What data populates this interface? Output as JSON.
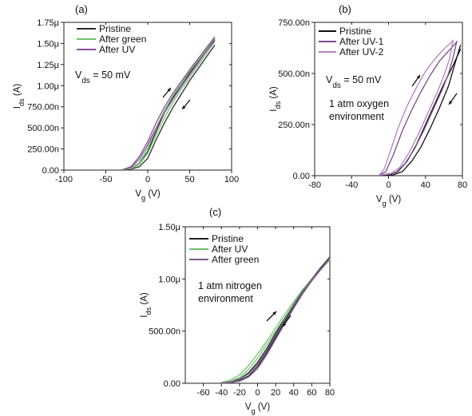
{
  "chart_data": [
    {
      "panel_label": "(a)",
      "type": "line",
      "xlabel": "V",
      "xlabel_sub": "g",
      "xlabel_unit": " (V)",
      "ylabel": "I",
      "ylabel_sub": "ds",
      "ylabel_unit": " (A)",
      "xlim": [
        -100,
        100
      ],
      "ylim": [
        0,
        1.75e-06
      ],
      "xticks": [
        -100,
        -50,
        0,
        50,
        100
      ],
      "xtick_labels": [
        "-100",
        "-50",
        "0",
        "50",
        "100"
      ],
      "yticks": [
        0,
        2.5e-07,
        5e-07,
        7.5e-07,
        1e-06,
        1.25e-06,
        1.5e-06,
        1.75e-06
      ],
      "ytick_labels": [
        "0.00",
        "250.00n",
        "500.00n",
        "750.00n",
        "1.00μ",
        "1.25μ",
        "1.50μ",
        "1.75μ"
      ],
      "annotations": [
        {
          "text": "V",
          "sub": "ds",
          "rest": " = 50 mV"
        }
      ],
      "legend": [
        "Pristine",
        "After green",
        "After UV"
      ],
      "series": [
        {
          "name": "Pristine",
          "color": "#2b2b2b",
          "forward": [
            [
              -30,
              5e-09
            ],
            [
              -20,
              1e-08
            ],
            [
              -10,
              4e-08
            ],
            [
              0,
              1.4e-07
            ],
            [
              10,
              3.6e-07
            ],
            [
              20,
              5.6e-07
            ],
            [
              30,
              7.4e-07
            ],
            [
              40,
              9e-07
            ],
            [
              50,
              1.06e-06
            ],
            [
              60,
              1.2e-06
            ],
            [
              70,
              1.34e-06
            ],
            [
              80,
              1.48e-06
            ]
          ],
          "reverse": [
            [
              80,
              1.54e-06
            ],
            [
              70,
              1.41e-06
            ],
            [
              60,
              1.28e-06
            ],
            [
              50,
              1.15e-06
            ],
            [
              40,
              1e-06
            ],
            [
              30,
              8.6e-07
            ],
            [
              20,
              6.8e-07
            ],
            [
              10,
              4.6e-07
            ],
            [
              0,
              2.2e-07
            ],
            [
              -10,
              7e-08
            ],
            [
              -20,
              1.5e-08
            ],
            [
              -30,
              5e-09
            ]
          ]
        },
        {
          "name": "After green",
          "color": "#6ec26e",
          "forward": [
            [
              -30,
              5e-09
            ],
            [
              -20,
              1.5e-08
            ],
            [
              -10,
              7e-08
            ],
            [
              0,
              2e-07
            ],
            [
              10,
              4.2e-07
            ],
            [
              20,
              6.2e-07
            ],
            [
              30,
              8e-07
            ],
            [
              40,
              9.6e-07
            ],
            [
              50,
              1.1e-06
            ],
            [
              60,
              1.24e-06
            ],
            [
              70,
              1.38e-06
            ],
            [
              80,
              1.52e-06
            ]
          ],
          "reverse": [
            [
              80,
              1.56e-06
            ],
            [
              70,
              1.43e-06
            ],
            [
              60,
              1.3e-06
            ],
            [
              50,
              1.17e-06
            ],
            [
              40,
              1.03e-06
            ],
            [
              30,
              8.8e-07
            ],
            [
              20,
              7.1e-07
            ],
            [
              10,
              5e-07
            ],
            [
              0,
              2.6e-07
            ],
            [
              -10,
              9e-08
            ],
            [
              -20,
              2e-08
            ],
            [
              -30,
              5e-09
            ]
          ]
        },
        {
          "name": "After UV",
          "color": "#8c4f9a",
          "forward": [
            [
              -30,
              5e-09
            ],
            [
              -20,
              3e-08
            ],
            [
              -10,
              1.3e-07
            ],
            [
              0,
              3e-07
            ],
            [
              10,
              5e-07
            ],
            [
              20,
              6.8e-07
            ],
            [
              30,
              8.4e-07
            ],
            [
              40,
              9.9e-07
            ],
            [
              50,
              1.13e-06
            ],
            [
              60,
              1.27e-06
            ],
            [
              70,
              1.41e-06
            ],
            [
              80,
              1.55e-06
            ]
          ],
          "reverse": [
            [
              80,
              1.58e-06
            ],
            [
              70,
              1.45e-06
            ],
            [
              60,
              1.32e-06
            ],
            [
              50,
              1.19e-06
            ],
            [
              40,
              1.05e-06
            ],
            [
              30,
              9.1e-07
            ],
            [
              20,
              7.5e-07
            ],
            [
              10,
              5.6e-07
            ],
            [
              0,
              3.4e-07
            ],
            [
              -10,
              1.6e-07
            ],
            [
              -20,
              4e-08
            ],
            [
              -30,
              5e-09
            ]
          ]
        }
      ]
    },
    {
      "panel_label": "(b)",
      "type": "line",
      "xlabel": "V",
      "xlabel_sub": "g",
      "xlabel_unit": " (V)",
      "ylabel": "I",
      "ylabel_sub": "ds",
      "ylabel_unit": " (A)",
      "xlim": [
        -80,
        80
      ],
      "ylim": [
        0,
        7.5e-07
      ],
      "xticks": [
        -80,
        -40,
        0,
        40,
        80
      ],
      "xtick_labels": [
        "-80",
        "-40",
        "0",
        "40",
        "80"
      ],
      "yticks": [
        0,
        2.5e-07,
        5e-07,
        7.5e-07
      ],
      "ytick_labels": [
        "0.00",
        "250.00n",
        "500.00n",
        "750.00n"
      ],
      "annotations": [
        {
          "text": "V",
          "sub": "ds",
          "rest": " = 50 mV"
        },
        {
          "text": "1 atm oxygen"
        },
        {
          "text": "environment"
        }
      ],
      "legend": [
        "Pristine",
        "After UV-1",
        "After UV-2"
      ],
      "series": [
        {
          "name": "Pristine",
          "color": "#111111",
          "forward": [
            [
              -10,
              1e-09
            ],
            [
              0,
              3e-09
            ],
            [
              10,
              2e-08
            ],
            [
              20,
              7e-08
            ],
            [
              30,
              1.5e-07
            ],
            [
              40,
              2.5e-07
            ],
            [
              50,
              3.5e-07
            ],
            [
              60,
              4.5e-07
            ],
            [
              70,
              5.4e-07
            ],
            [
              78,
              6.2e-07
            ]
          ],
          "reverse": [
            [
              78,
              6.4e-07
            ],
            [
              72,
              5.5e-07
            ],
            [
              65,
              4.4e-07
            ],
            [
              55,
              3.3e-07
            ],
            [
              45,
              2.3e-07
            ],
            [
              35,
              1.4e-07
            ],
            [
              25,
              7e-08
            ],
            [
              15,
              2e-08
            ],
            [
              5,
              4e-09
            ],
            [
              -10,
              1e-09
            ]
          ]
        },
        {
          "name": "After UV-1",
          "color": "#7a4a8a",
          "forward": [
            [
              -10,
              2e-09
            ],
            [
              -3,
              2e-08
            ],
            [
              5,
              1e-07
            ],
            [
              15,
              2.2e-07
            ],
            [
              25,
              3.2e-07
            ],
            [
              35,
              4.1e-07
            ],
            [
              45,
              4.9e-07
            ],
            [
              55,
              5.6e-07
            ],
            [
              65,
              6.1e-07
            ],
            [
              74,
              6.55e-07
            ]
          ],
          "reverse": [
            [
              74,
              6.6e-07
            ],
            [
              70,
              5.8e-07
            ],
            [
              65,
              5e-07
            ],
            [
              58,
              4.2e-07
            ],
            [
              48,
              3.2e-07
            ],
            [
              38,
              2.2e-07
            ],
            [
              28,
              1.3e-07
            ],
            [
              18,
              6e-08
            ],
            [
              8,
              1.5e-08
            ],
            [
              -10,
              2e-09
            ]
          ]
        },
        {
          "name": "After UV-2",
          "color": "#b580c2",
          "forward": [
            [
              -10,
              4e-09
            ],
            [
              -5,
              3e-08
            ],
            [
              2,
              1.2e-07
            ],
            [
              10,
              2.3e-07
            ],
            [
              20,
              3.4e-07
            ],
            [
              30,
              4.3e-07
            ],
            [
              40,
              5.1e-07
            ],
            [
              50,
              5.7e-07
            ],
            [
              60,
              6.2e-07
            ],
            [
              70,
              6.6e-07
            ]
          ],
          "reverse": [
            [
              70,
              6.65e-07
            ],
            [
              66,
              5.7e-07
            ],
            [
              60,
              4.9e-07
            ],
            [
              52,
              4e-07
            ],
            [
              42,
              3e-07
            ],
            [
              32,
              2e-07
            ],
            [
              22,
              1.1e-07
            ],
            [
              12,
              4e-08
            ],
            [
              2,
              8e-09
            ],
            [
              -10,
              3e-09
            ]
          ]
        }
      ]
    },
    {
      "panel_label": "(c)",
      "type": "line",
      "xlabel": "V",
      "xlabel_sub": "g",
      "xlabel_unit": " (V)",
      "ylabel": "I",
      "ylabel_sub": "ds",
      "ylabel_unit": " (A)",
      "xlim": [
        -80,
        80
      ],
      "ylim": [
        0,
        1.5e-06
      ],
      "xticks": [
        -60,
        -40,
        -20,
        0,
        20,
        40,
        60,
        80
      ],
      "xtick_labels": [
        "-60",
        "-40",
        "-20",
        "0",
        "20",
        "40",
        "60",
        "80"
      ],
      "yticks": [
        0,
        5e-07,
        1e-06,
        1.5e-06
      ],
      "ytick_labels": [
        "0.00",
        "500.00n",
        "1.00μ",
        "1.50μ"
      ],
      "annotations": [
        {
          "text": "1 atm nitrogen"
        },
        {
          "text": "environment"
        }
      ],
      "legend": [
        "Pristine",
        "After UV",
        "After green"
      ],
      "series": [
        {
          "name": "Pristine",
          "color": "#222222",
          "forward": [
            [
              -40,
              5e-09
            ],
            [
              -30,
              1.5e-08
            ],
            [
              -20,
              4e-08
            ],
            [
              -10,
              1e-07
            ],
            [
              0,
              2e-07
            ],
            [
              10,
              3.3e-07
            ],
            [
              20,
              4.8e-07
            ],
            [
              30,
              6.2e-07
            ],
            [
              40,
              7.6e-07
            ],
            [
              50,
              8.9e-07
            ],
            [
              60,
              1e-06
            ],
            [
              70,
              1.11e-06
            ],
            [
              80,
              1.21e-06
            ]
          ],
          "reverse": [
            [
              80,
              1.21e-06
            ],
            [
              70,
              1.1e-06
            ],
            [
              60,
              9.9e-07
            ],
            [
              50,
              8.7e-07
            ],
            [
              40,
              7.4e-07
            ],
            [
              30,
              5.9e-07
            ],
            [
              20,
              4.4e-07
            ],
            [
              10,
              2.9e-07
            ],
            [
              0,
              1.6e-07
            ],
            [
              -10,
              7e-08
            ],
            [
              -20,
              2.5e-08
            ],
            [
              -30,
              8e-09
            ],
            [
              -40,
              4e-09
            ]
          ]
        },
        {
          "name": "After UV",
          "color": "#6ec26e",
          "forward": [
            [
              -40,
              8e-09
            ],
            [
              -30,
              3e-08
            ],
            [
              -20,
              8e-08
            ],
            [
              -10,
              1.7e-07
            ],
            [
              0,
              2.8e-07
            ],
            [
              10,
              4e-07
            ],
            [
              20,
              5.3e-07
            ],
            [
              30,
              6.6e-07
            ],
            [
              40,
              7.8e-07
            ],
            [
              50,
              9e-07
            ],
            [
              60,
              1e-06
            ],
            [
              70,
              1.09e-06
            ],
            [
              80,
              1.18e-06
            ]
          ],
          "reverse": [
            [
              80,
              1.19e-06
            ],
            [
              70,
              1.09e-06
            ],
            [
              60,
              9.9e-07
            ],
            [
              50,
              8.8e-07
            ],
            [
              40,
              7.6e-07
            ],
            [
              30,
              6.3e-07
            ],
            [
              20,
              5e-07
            ],
            [
              10,
              3.7e-07
            ],
            [
              0,
              2.4e-07
            ],
            [
              -10,
              1.3e-07
            ],
            [
              -20,
              5.5e-08
            ],
            [
              -30,
              1.8e-08
            ],
            [
              -40,
              6e-09
            ]
          ]
        },
        {
          "name": "After green",
          "color": "#7a5a8a",
          "forward": [
            [
              -40,
              4e-09
            ],
            [
              -30,
              1.2e-08
            ],
            [
              -20,
              3.5e-08
            ],
            [
              -10,
              9e-08
            ],
            [
              0,
              1.8e-07
            ],
            [
              10,
              3.1e-07
            ],
            [
              20,
              4.6e-07
            ],
            [
              30,
              6.1e-07
            ],
            [
              40,
              7.5e-07
            ],
            [
              50,
              8.8e-07
            ],
            [
              60,
              1e-06
            ],
            [
              70,
              1.1e-06
            ],
            [
              80,
              1.2e-06
            ]
          ],
          "reverse": [
            [
              80,
              1.2e-06
            ],
            [
              70,
              1.09e-06
            ],
            [
              60,
              9.8e-07
            ],
            [
              50,
              8.6e-07
            ],
            [
              40,
              7.2e-07
            ],
            [
              30,
              5.7e-07
            ],
            [
              20,
              4.2e-07
            ],
            [
              10,
              2.7e-07
            ],
            [
              0,
              1.4e-07
            ],
            [
              -10,
              6e-08
            ],
            [
              -20,
              2e-08
            ],
            [
              -30,
              6e-09
            ],
            [
              -40,
              3e-09
            ]
          ]
        }
      ]
    }
  ]
}
